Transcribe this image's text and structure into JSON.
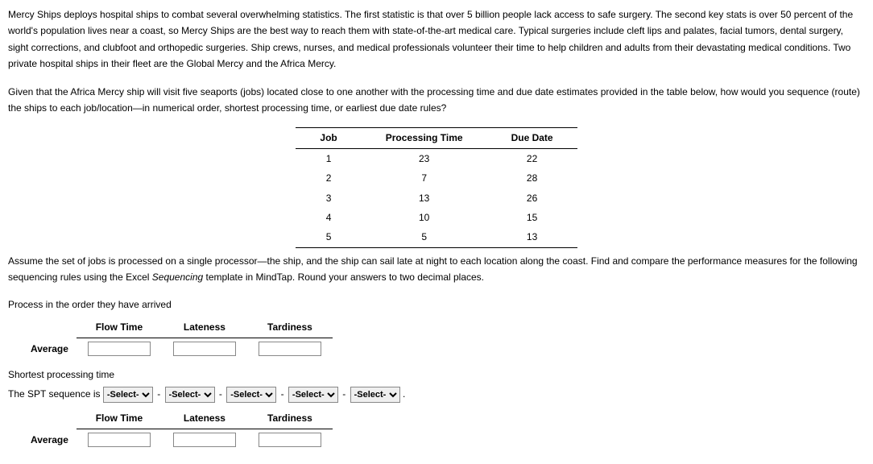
{
  "para1": "Mercy Ships deploys hospital ships to combat several overwhelming statistics. The first statistic is that over 5 billion people lack access to safe surgery. The second key stats is over 50 percent of the world's population lives near a coast, so Mercy Ships are the best way to reach them with state-of-the-art medical care. Typical surgeries include cleft lips and palates, facial tumors, dental surgery, sight corrections, and clubfoot and orthopedic surgeries. Ship crews, nurses, and medical professionals volunteer their time to help children and adults from their devastating medical conditions. Two private hospital ships in their fleet are the Global Mercy and the Africa Mercy.",
  "para2": "Given that the Africa Mercy ship will visit five seaports (jobs) located close to one another with the processing time and due date estimates provided in the table below, how would you sequence (route) the ships to each job/location—in numerical order, shortest processing time, or earliest due date rules?",
  "jobs": {
    "headers": {
      "c1": "Job",
      "c2": "Processing Time",
      "c3": "Due Date"
    },
    "rows": [
      {
        "job": "1",
        "pt": "23",
        "dd": "22"
      },
      {
        "job": "2",
        "pt": "7",
        "dd": "28"
      },
      {
        "job": "3",
        "pt": "13",
        "dd": "26"
      },
      {
        "job": "4",
        "pt": "10",
        "dd": "15"
      },
      {
        "job": "5",
        "pt": "5",
        "dd": "13"
      }
    ]
  },
  "para3_pre": "Assume the set of jobs is processed on a single processor—the ship, and the ship can sail late at night to each location along the coast. Find and compare the performance measures for the following sequencing rules using the Excel ",
  "para3_ital": "Sequencing",
  "para3_post": " template in MindTap. Round your answers to two decimal places.",
  "sec_arrival": "Process in the order they have arrived",
  "perf_headers": {
    "c1": "Flow Time",
    "c2": "Lateness",
    "c3": "Tardiness"
  },
  "row_average": "Average",
  "sec_spt": "Shortest processing time",
  "spt_prefix": "The SPT sequence is ",
  "select_placeholder": "-Select-",
  "sep": "-",
  "period": "."
}
